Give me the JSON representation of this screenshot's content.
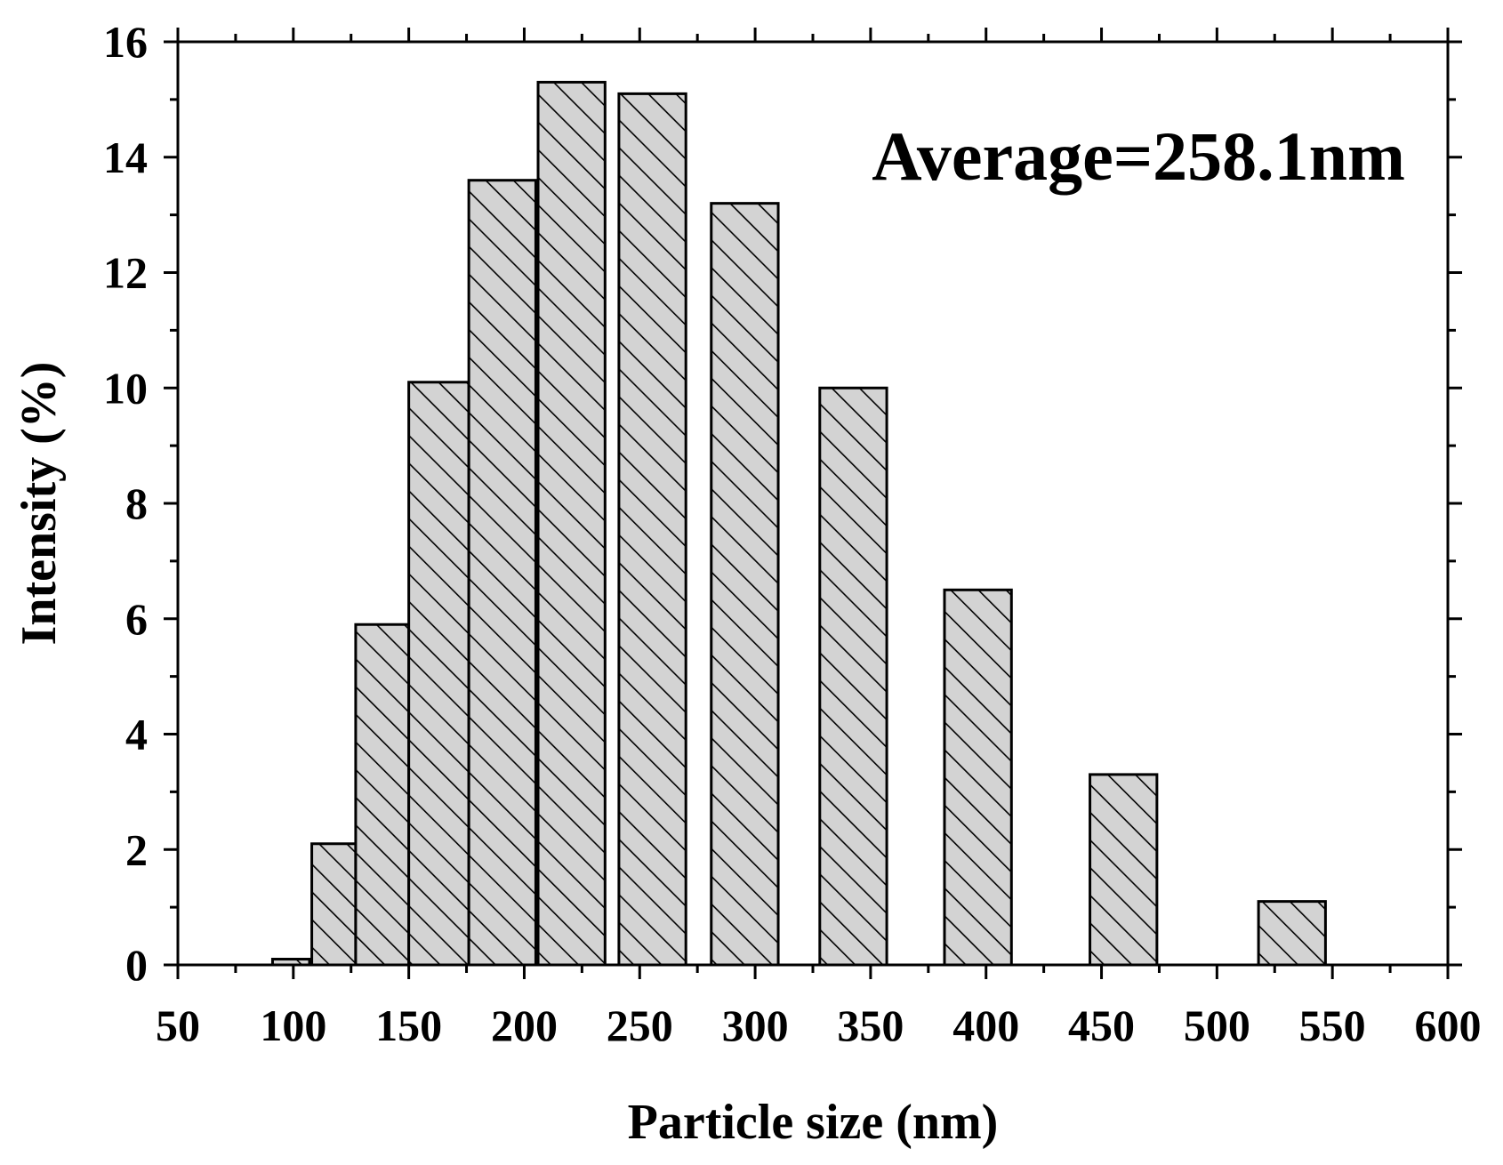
{
  "chart_data": {
    "type": "bar",
    "xlabel": "Particle size (nm)",
    "ylabel": "Intensity (%)",
    "annotation": "Average=258.1nm",
    "xlim": [
      50,
      600
    ],
    "ylim": [
      0,
      16
    ],
    "x_ticks": [
      "50",
      "100",
      "150",
      "200",
      "250",
      "300",
      "350",
      "400",
      "450",
      "500",
      "550",
      "600"
    ],
    "y_ticks": [
      "0",
      "2",
      "4",
      "6",
      "8",
      "10",
      "12",
      "14",
      "16"
    ],
    "grid": false,
    "legend": "none",
    "bar_fill": "#d3d3d3",
    "hatch": "diagonal",
    "bars": [
      {
        "x_start": 91,
        "x_end": 107,
        "value": 0.1
      },
      {
        "x_start": 108,
        "x_end": 127,
        "value": 2.1
      },
      {
        "x_start": 127,
        "x_end": 150,
        "value": 5.9
      },
      {
        "x_start": 150,
        "x_end": 176,
        "value": 10.1
      },
      {
        "x_start": 176,
        "x_end": 205,
        "value": 13.6
      },
      {
        "x_start": 206,
        "x_end": 235,
        "value": 15.3
      },
      {
        "x_start": 241,
        "x_end": 270,
        "value": 15.1
      },
      {
        "x_start": 281,
        "x_end": 310,
        "value": 13.2
      },
      {
        "x_start": 328,
        "x_end": 357,
        "value": 10.0
      },
      {
        "x_start": 382,
        "x_end": 411,
        "value": 6.5
      },
      {
        "x_start": 445,
        "x_end": 474,
        "value": 3.3
      },
      {
        "x_start": 518,
        "x_end": 547,
        "value": 1.1
      }
    ]
  }
}
